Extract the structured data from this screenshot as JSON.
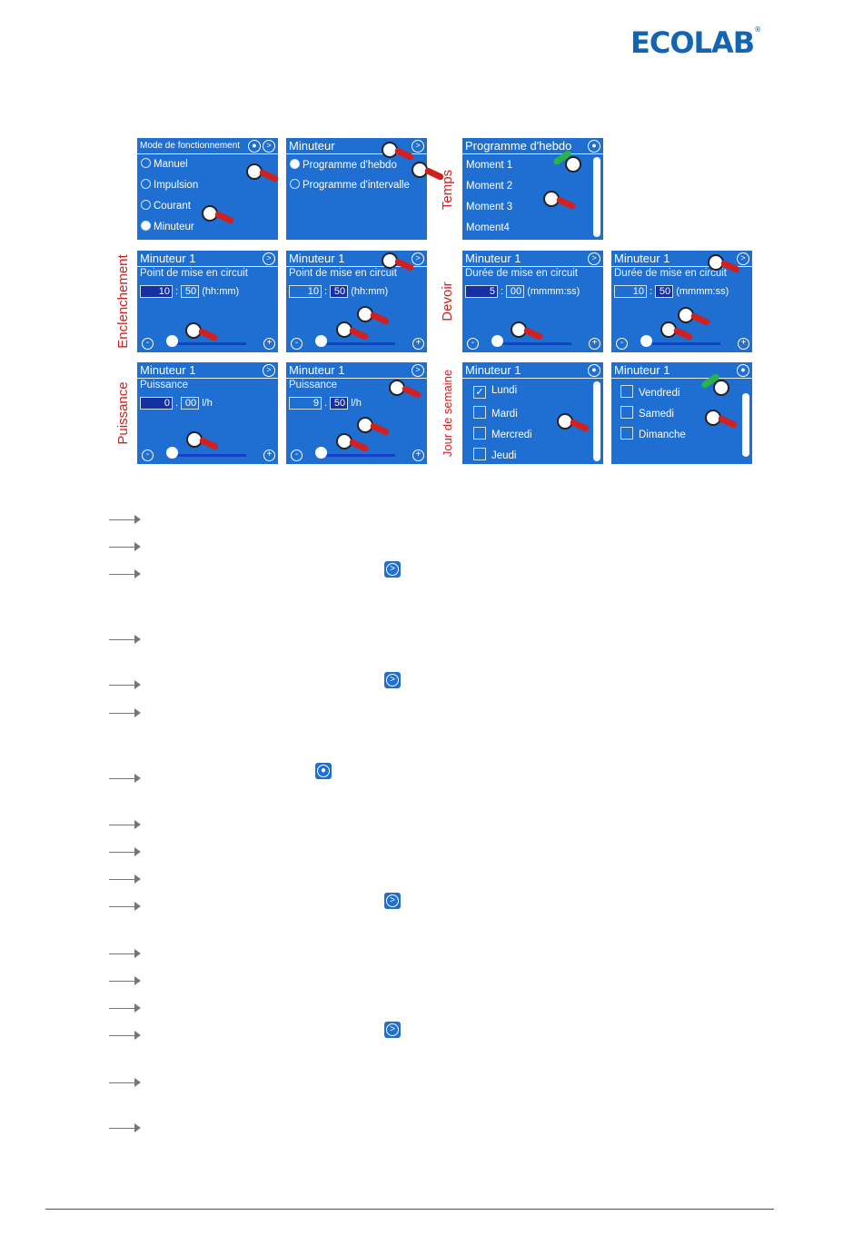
{
  "logo": "ECOLAB",
  "labels": {
    "temps": "Temps",
    "enclenchement": "Enclenchement",
    "devoir": "Devoir",
    "puissance": "Puissance",
    "jour": "Jour de semaine"
  },
  "panels": {
    "mode": {
      "title": "Mode de fonctionnement",
      "options": [
        "Manuel",
        "Impulsion",
        "Courant",
        "Minuteur"
      ]
    },
    "minuteur": {
      "title": "Minuteur",
      "options": [
        "Programme d'hebdo",
        "Programme d'intervalle"
      ]
    },
    "prog": {
      "title": "Programme d'hebdo",
      "items": [
        "Moment 1",
        "Moment 2",
        "Moment 3",
        "Moment4"
      ]
    },
    "m1": {
      "title": "Minuteur 1",
      "point": "Point de mise en circuit",
      "duree": "Durée de mise en circuit",
      "puissance": "Puissance",
      "hhmm": "(hh:mm)",
      "mmss": "(mmmm:ss)",
      "lh": "l/h"
    },
    "values": {
      "e1a": "10",
      "e1b": "50",
      "e2a": "10",
      "e2b": "50",
      "d1a": "5",
      "d1b": "00",
      "d2a": "10",
      "d2b": "50",
      "p1a": "0",
      "p1b": "00",
      "p2a": "9",
      "p2b": "50"
    },
    "jours1": [
      "Lundi",
      "Mardi",
      "Mercredi",
      "Jeudi"
    ],
    "jours2": [
      "Vendredi",
      "Samedi",
      "Dimanche"
    ]
  },
  "icons": {
    "next": "next-icon",
    "drop": "drop-icon",
    "check": "✓"
  },
  "colors": {
    "panel": "#1f6fd3",
    "label": "#d02020",
    "brand": "#1464b4"
  }
}
